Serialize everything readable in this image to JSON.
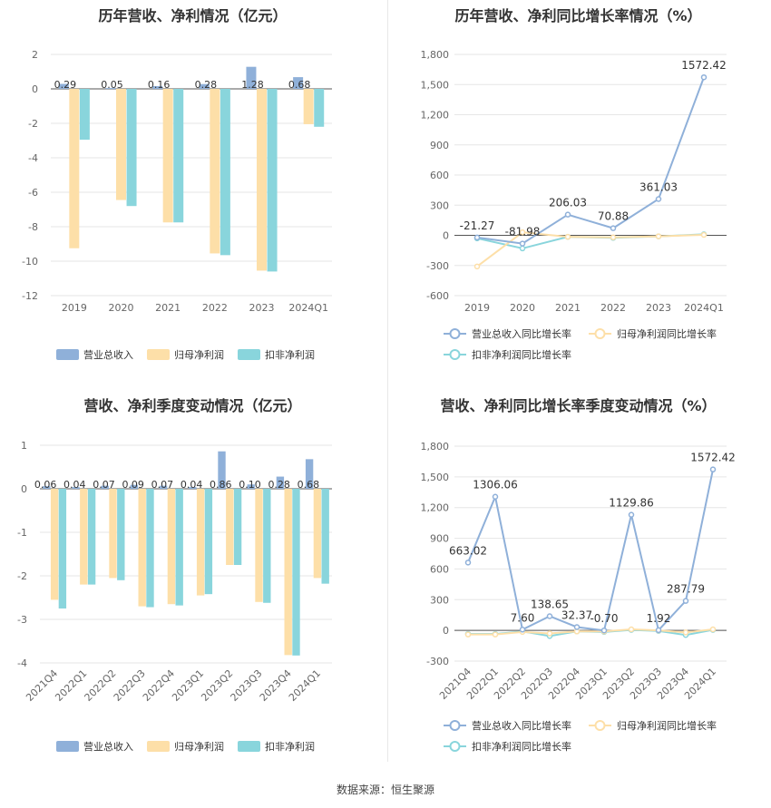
{
  "source_text": "数据来源：恒生聚源",
  "colors": {
    "revenue": "#8fb0d9",
    "netprofit": "#fddfa8",
    "deducted": "#89d5dc",
    "grid": "#e6e6e6",
    "axis": "#999999"
  },
  "chart_data": [
    {
      "type": "bar",
      "title": "历年营收、净利情况（亿元）",
      "categories": [
        "2019",
        "2020",
        "2021",
        "2022",
        "2023",
        "2024Q1"
      ],
      "ylim": [
        -12,
        2
      ],
      "yticks": [
        2,
        0,
        -2,
        -4,
        -6,
        -8,
        -10,
        -12
      ],
      "series": [
        {
          "name": "营业总收入",
          "values": [
            0.29,
            0.05,
            0.16,
            0.28,
            1.28,
            0.68
          ]
        },
        {
          "name": "归母净利润",
          "values": [
            -9.25,
            -6.45,
            -7.75,
            -9.55,
            -10.55,
            -2.05
          ]
        },
        {
          "name": "扣非净利润",
          "values": [
            -2.95,
            -6.8,
            -7.75,
            -9.65,
            -10.6,
            -2.2
          ]
        }
      ],
      "data_labels": [
        "0.29",
        "0.05",
        "0.16",
        "0.28",
        "1.28",
        "0.68"
      ],
      "legend": [
        "营业总收入",
        "归母净利润",
        "扣非净利润"
      ],
      "legend_position": "bottom"
    },
    {
      "type": "line",
      "title": "历年营收、净利同比增长率情况（%）",
      "categories": [
        "2019",
        "2020",
        "2021",
        "2022",
        "2023",
        "2024Q1"
      ],
      "ylim": [
        -600,
        1800
      ],
      "yticks": [
        "1,800",
        "1,500",
        "1,200",
        "900",
        "600",
        "300",
        "0",
        "-300",
        "-600"
      ],
      "series": [
        {
          "name": "营业总收入同比增长率",
          "values": [
            -21.27,
            -81.98,
            206.03,
            70.88,
            361.03,
            1572.42
          ]
        },
        {
          "name": "归母净利润同比增长率",
          "values": [
            -310,
            30,
            -15,
            -20,
            -10,
            5
          ]
        },
        {
          "name": "扣非净利润同比增长率",
          "values": [
            -30,
            -130,
            -15,
            -25,
            -10,
            10
          ]
        }
      ],
      "data_labels": [
        "-21.27",
        "-81.98",
        "206.03",
        "70.88",
        "361.03",
        "1572.42"
      ],
      "legend": [
        "营业总收入同比增长率",
        "归母净利润同比增长率",
        "扣非净利润同比增长率"
      ],
      "legend_position": "bottom"
    },
    {
      "type": "bar",
      "title": "营收、净利季度变动情况（亿元）",
      "categories": [
        "2021Q4",
        "2022Q1",
        "2022Q2",
        "2022Q3",
        "2022Q4",
        "2023Q1",
        "2023Q2",
        "2023Q3",
        "2023Q4",
        "2024Q1"
      ],
      "ylim": [
        -4,
        1
      ],
      "yticks": [
        1,
        0,
        -1,
        -2,
        -3,
        -4
      ],
      "series": [
        {
          "name": "营业总收入",
          "values": [
            0.06,
            0.04,
            0.07,
            0.09,
            0.07,
            0.04,
            0.86,
            0.1,
            0.28,
            0.68
          ]
        },
        {
          "name": "归母净利润",
          "values": [
            -2.55,
            -2.2,
            -2.05,
            -2.7,
            -2.65,
            -2.45,
            -1.75,
            -2.6,
            -3.82,
            -2.05
          ]
        },
        {
          "name": "扣非净利润",
          "values": [
            -2.75,
            -2.2,
            -2.1,
            -2.72,
            -2.68,
            -2.42,
            -1.75,
            -2.62,
            -3.83,
            -2.18
          ]
        }
      ],
      "data_labels": [
        "0.06",
        "0.04",
        "0.07",
        "0.09",
        "0.07",
        "0.04",
        "0.86",
        "0.10",
        "0.28",
        "0.68"
      ],
      "legend": [
        "营业总收入",
        "归母净利润",
        "扣非净利润"
      ],
      "legend_position": "bottom"
    },
    {
      "type": "line",
      "title": "营收、净利同比增长率季度变动情况（%）",
      "categories": [
        "2021Q4",
        "2022Q1",
        "2022Q2",
        "2022Q3",
        "2022Q4",
        "2023Q1",
        "2023Q2",
        "2023Q3",
        "2023Q4",
        "2024Q1"
      ],
      "ylim": [
        -300,
        1800
      ],
      "yticks": [
        "1,800",
        "1,500",
        "1,200",
        "900",
        "600",
        "300",
        "0",
        "-300"
      ],
      "series": [
        {
          "name": "营业总收入同比增长率",
          "values": [
            663.02,
            1306.06,
            7.6,
            138.65,
            32.37,
            -0.7,
            1129.86,
            1.92,
            287.79,
            1572.42
          ]
        },
        {
          "name": "归母净利润同比增长率",
          "values": [
            -40,
            -40,
            -15,
            -30,
            -10,
            -10,
            10,
            0,
            -20,
            10
          ]
        },
        {
          "name": "扣非净利润同比增长率",
          "values": [
            -35,
            -35,
            -10,
            -55,
            -10,
            -15,
            5,
            -5,
            -45,
            5
          ]
        }
      ],
      "data_labels": [
        "663.02",
        "1306.06",
        "7.60",
        "138.65",
        "32.37",
        "-0.70",
        "1129.86",
        "1.92",
        "287.79",
        "1572.42"
      ],
      "legend": [
        "营业总收入同比增长率",
        "归母净利润同比增长率",
        "扣非净利润同比增长率"
      ],
      "legend_position": "bottom"
    }
  ]
}
